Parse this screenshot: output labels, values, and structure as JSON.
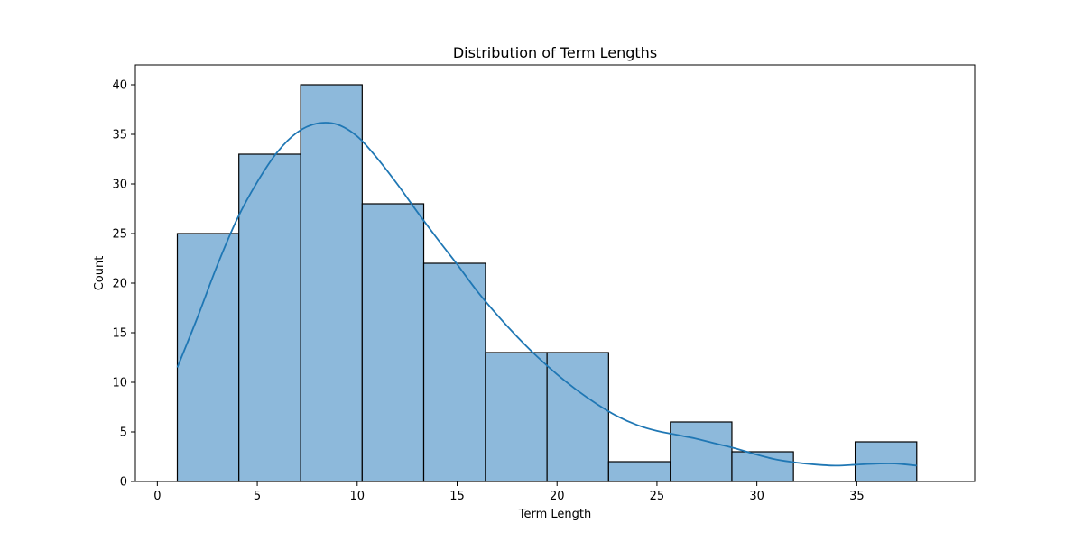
{
  "chart_data": {
    "type": "bar",
    "title": "Distribution of Term Lengths",
    "xlabel": "Term Length",
    "ylabel": "Count",
    "xlim": [
      -1.1,
      40.9
    ],
    "ylim": [
      0,
      42
    ],
    "x_ticks": [
      0,
      5,
      10,
      15,
      20,
      25,
      30,
      35
    ],
    "y_ticks": [
      0,
      5,
      10,
      15,
      20,
      25,
      30,
      35,
      40
    ],
    "grid": false,
    "bins": [
      {
        "start": 1.0,
        "end": 4.08,
        "count": 25
      },
      {
        "start": 4.08,
        "end": 7.17,
        "count": 33
      },
      {
        "start": 7.17,
        "end": 10.25,
        "count": 40
      },
      {
        "start": 10.25,
        "end": 13.33,
        "count": 28
      },
      {
        "start": 13.33,
        "end": 16.42,
        "count": 22
      },
      {
        "start": 16.42,
        "end": 19.5,
        "count": 13
      },
      {
        "start": 19.5,
        "end": 22.58,
        "count": 13
      },
      {
        "start": 22.58,
        "end": 25.67,
        "count": 2
      },
      {
        "start": 25.67,
        "end": 28.75,
        "count": 6
      },
      {
        "start": 28.75,
        "end": 31.83,
        "count": 3
      },
      {
        "start": 31.83,
        "end": 34.92,
        "count": 0
      },
      {
        "start": 34.92,
        "end": 38.0,
        "count": 4
      }
    ],
    "kde": {
      "x": [
        1,
        2,
        3,
        4,
        5,
        6,
        7,
        8,
        9,
        10,
        11,
        12,
        13,
        14,
        15,
        16,
        17,
        18,
        19,
        20,
        21,
        22,
        23,
        24,
        25,
        26,
        27,
        28,
        29,
        30,
        31,
        32,
        33,
        34,
        35,
        36,
        37,
        38
      ],
      "y": [
        11.5,
        16.5,
        21.8,
        26.5,
        30.2,
        33.2,
        35.2,
        36.1,
        36.0,
        34.8,
        32.6,
        30.0,
        27.2,
        24.5,
        21.9,
        19.2,
        16.8,
        14.6,
        12.6,
        10.8,
        9.2,
        7.8,
        6.6,
        5.7,
        5.1,
        4.7,
        4.3,
        3.8,
        3.3,
        2.7,
        2.2,
        1.9,
        1.7,
        1.6,
        1.7,
        1.8,
        1.8,
        1.6
      ]
    },
    "colors": {
      "bar_fill": "#8db9db",
      "bar_edge": "#000000",
      "kde_line": "#1f77b4"
    }
  }
}
